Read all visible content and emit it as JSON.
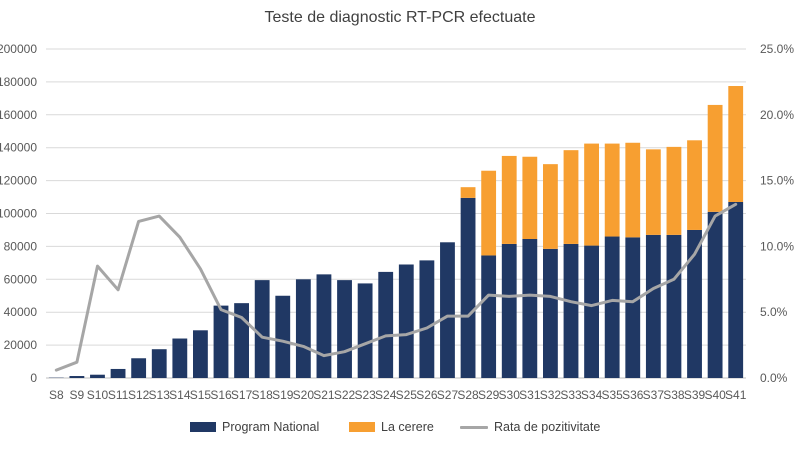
{
  "chart_data": {
    "type": "bar",
    "title": "Teste de diagnostic RT-PCR efectuate",
    "categories": [
      "S8",
      "S9",
      "S10",
      "S11",
      "S12",
      "S13",
      "S14",
      "S15",
      "S16",
      "S17",
      "S18",
      "S19",
      "S20",
      "S21",
      "S22",
      "S23",
      "S24",
      "S25",
      "S26",
      "S27",
      "S28",
      "S29",
      "S30",
      "S31",
      "S32",
      "S33",
      "S34",
      "S35",
      "S36",
      "S37",
      "S38",
      "S39",
      "S40",
      "S41"
    ],
    "stacked": true,
    "series": [
      {
        "name": "Program National",
        "axis": "left",
        "color": "#203864",
        "values": [
          200,
          1200,
          2000,
          5500,
          12000,
          17500,
          24000,
          29000,
          44000,
          45500,
          59500,
          50000,
          60000,
          63000,
          59500,
          57500,
          64500,
          69000,
          71500,
          82500,
          109500,
          74500,
          81500,
          84500,
          78500,
          81500,
          80500,
          86000,
          85500,
          87000,
          87000,
          90000,
          101000,
          107000
        ]
      },
      {
        "name": "La cerere",
        "axis": "left",
        "color": "#F79F31",
        "values": [
          0,
          0,
          0,
          0,
          0,
          0,
          0,
          0,
          0,
          0,
          0,
          0,
          0,
          0,
          0,
          0,
          0,
          0,
          0,
          0,
          6500,
          51500,
          53500,
          50000,
          51500,
          57000,
          62000,
          56500,
          57500,
          52000,
          53500,
          54500,
          65000,
          70500
        ]
      },
      {
        "name": "Rata de pozitivitate",
        "type": "line",
        "axis": "right",
        "color": "#A6A6A6",
        "values": [
          0.6,
          1.2,
          8.5,
          6.7,
          11.9,
          12.3,
          10.7,
          8.3,
          5.2,
          4.6,
          3.1,
          2.8,
          2.4,
          1.7,
          2.0,
          2.6,
          3.2,
          3.3,
          3.8,
          4.7,
          4.7,
          6.3,
          6.2,
          6.3,
          6.2,
          5.8,
          5.5,
          5.9,
          5.8,
          6.8,
          7.5,
          9.4,
          12.3,
          13.2
        ]
      }
    ],
    "y_left": {
      "ylim": [
        0,
        200000
      ],
      "ticks": [
        0,
        20000,
        40000,
        60000,
        80000,
        100000,
        120000,
        140000,
        160000,
        180000,
        200000
      ],
      "tick_labels": [
        "0",
        "20000",
        "40000",
        "60000",
        "80000",
        "100000",
        "120000",
        "140000",
        "160000",
        "180000",
        "200000"
      ]
    },
    "y_right": {
      "ylim": [
        0,
        25
      ],
      "ticks": [
        0,
        5,
        10,
        15,
        20,
        25
      ],
      "tick_labels": [
        "0.0%",
        "5.0%",
        "10.0%",
        "15.0%",
        "20.0%",
        "25.0%"
      ]
    },
    "grid": true,
    "legend_position": "bottom"
  },
  "legend": {
    "program_national": "Program National",
    "la_cerere": "La cerere",
    "rata": "Rata de pozitivitate"
  }
}
